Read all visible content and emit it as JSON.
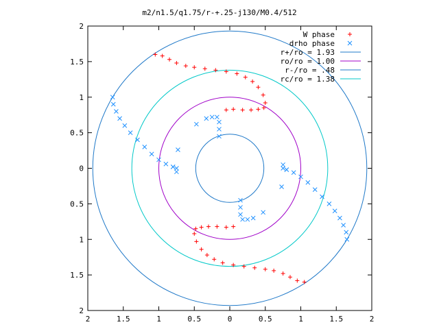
{
  "chart_data": {
    "type": "scatter",
    "title": "m2/n1.5/q1.75/r-+.25-j130/M0.4/512",
    "xlabel": "",
    "ylabel": "",
    "xlim": [
      -2,
      2
    ],
    "ylim": [
      -2,
      2
    ],
    "grid": false,
    "legend_position": "top-right",
    "x_ticks": [
      -2,
      -1.5,
      -1,
      -0.5,
      0,
      0.5,
      1,
      1.5,
      2
    ],
    "y_ticks": [
      -2,
      -1.5,
      -1,
      -0.5,
      0,
      0.5,
      1,
      1.5,
      2
    ],
    "x_tick_labels": [
      "2",
      "1.5",
      "1",
      "0.5",
      "0",
      "0.5",
      "1",
      "1.5",
      "2"
    ],
    "y_tick_labels": [
      "2",
      "1.5",
      "1",
      "0.5",
      "0",
      "0.5",
      "1",
      "1.5",
      "2"
    ],
    "series": [
      {
        "name": "W phase",
        "marker": "+",
        "color": "#ff0000",
        "points": [
          [
            -1.05,
            1.6
          ],
          [
            -0.95,
            1.58
          ],
          [
            -0.85,
            1.53
          ],
          [
            -0.75,
            1.48
          ],
          [
            -0.62,
            1.44
          ],
          [
            -0.5,
            1.42
          ],
          [
            -0.35,
            1.4
          ],
          [
            -0.2,
            1.38
          ],
          [
            -0.05,
            1.36
          ],
          [
            0.1,
            1.33
          ],
          [
            0.22,
            1.28
          ],
          [
            0.32,
            1.22
          ],
          [
            0.4,
            1.14
          ],
          [
            0.47,
            1.03
          ],
          [
            0.5,
            0.92
          ],
          [
            0.48,
            0.85
          ],
          [
            0.4,
            0.83
          ],
          [
            0.3,
            0.82
          ],
          [
            0.18,
            0.82
          ],
          [
            0.05,
            0.83
          ],
          [
            -0.05,
            0.82
          ],
          [
            1.05,
            -1.6
          ],
          [
            0.95,
            -1.58
          ],
          [
            0.85,
            -1.53
          ],
          [
            0.75,
            -1.48
          ],
          [
            0.62,
            -1.44
          ],
          [
            0.5,
            -1.42
          ],
          [
            0.35,
            -1.4
          ],
          [
            0.2,
            -1.38
          ],
          [
            0.05,
            -1.36
          ],
          [
            -0.1,
            -1.33
          ],
          [
            -0.22,
            -1.28
          ],
          [
            -0.32,
            -1.22
          ],
          [
            -0.4,
            -1.14
          ],
          [
            -0.47,
            -1.03
          ],
          [
            -0.5,
            -0.92
          ],
          [
            -0.48,
            -0.85
          ],
          [
            -0.4,
            -0.83
          ],
          [
            -0.3,
            -0.82
          ],
          [
            -0.18,
            -0.82
          ],
          [
            -0.05,
            -0.83
          ],
          [
            0.05,
            -0.82
          ]
        ]
      },
      {
        "name": "drho phase",
        "marker": "x",
        "color": "#1e90ff",
        "points": [
          [
            -1.65,
            1.0
          ],
          [
            -1.64,
            0.9
          ],
          [
            -1.6,
            0.8
          ],
          [
            -1.55,
            0.7
          ],
          [
            -1.48,
            0.6
          ],
          [
            -1.4,
            0.5
          ],
          [
            -1.3,
            0.4
          ],
          [
            -1.2,
            0.3
          ],
          [
            -1.1,
            0.2
          ],
          [
            -1.0,
            0.12
          ],
          [
            -0.9,
            0.06
          ],
          [
            -0.8,
            0.02
          ],
          [
            -0.75,
            0.0
          ],
          [
            -0.75,
            -0.05
          ],
          [
            -0.15,
            0.45
          ],
          [
            -0.15,
            0.55
          ],
          [
            -0.15,
            0.65
          ],
          [
            -0.18,
            0.72
          ],
          [
            -0.25,
            0.72
          ],
          [
            -0.33,
            0.7
          ],
          [
            -0.47,
            0.62
          ],
          [
            -0.73,
            0.26
          ],
          [
            -0.8,
            0.02
          ],
          [
            1.65,
            -1.0
          ],
          [
            1.64,
            -0.9
          ],
          [
            1.6,
            -0.8
          ],
          [
            1.55,
            -0.7
          ],
          [
            1.48,
            -0.6
          ],
          [
            1.4,
            -0.5
          ],
          [
            1.3,
            -0.4
          ],
          [
            1.2,
            -0.3
          ],
          [
            1.1,
            -0.2
          ],
          [
            1.0,
            -0.12
          ],
          [
            0.9,
            -0.06
          ],
          [
            0.8,
            -0.02
          ],
          [
            0.75,
            0.0
          ],
          [
            0.75,
            0.05
          ],
          [
            0.15,
            -0.45
          ],
          [
            0.15,
            -0.55
          ],
          [
            0.15,
            -0.65
          ],
          [
            0.18,
            -0.72
          ],
          [
            0.25,
            -0.72
          ],
          [
            0.33,
            -0.7
          ],
          [
            0.47,
            -0.62
          ],
          [
            0.73,
            -0.26
          ],
          [
            0.8,
            -0.02
          ]
        ]
      }
    ],
    "circles": [
      {
        "name": "r+/ro = 1.93",
        "radius": 1.93,
        "color": "#1e78c8"
      },
      {
        "name": "ro/ro = 1.00",
        "radius": 1.0,
        "color": "#a000c8"
      },
      {
        "name": "r-/ro = .48",
        "radius": 0.48,
        "color": "#1e78c8"
      },
      {
        "name": "rc/ro = 1.38",
        "radius": 1.38,
        "color": "#00c8c8"
      }
    ]
  }
}
